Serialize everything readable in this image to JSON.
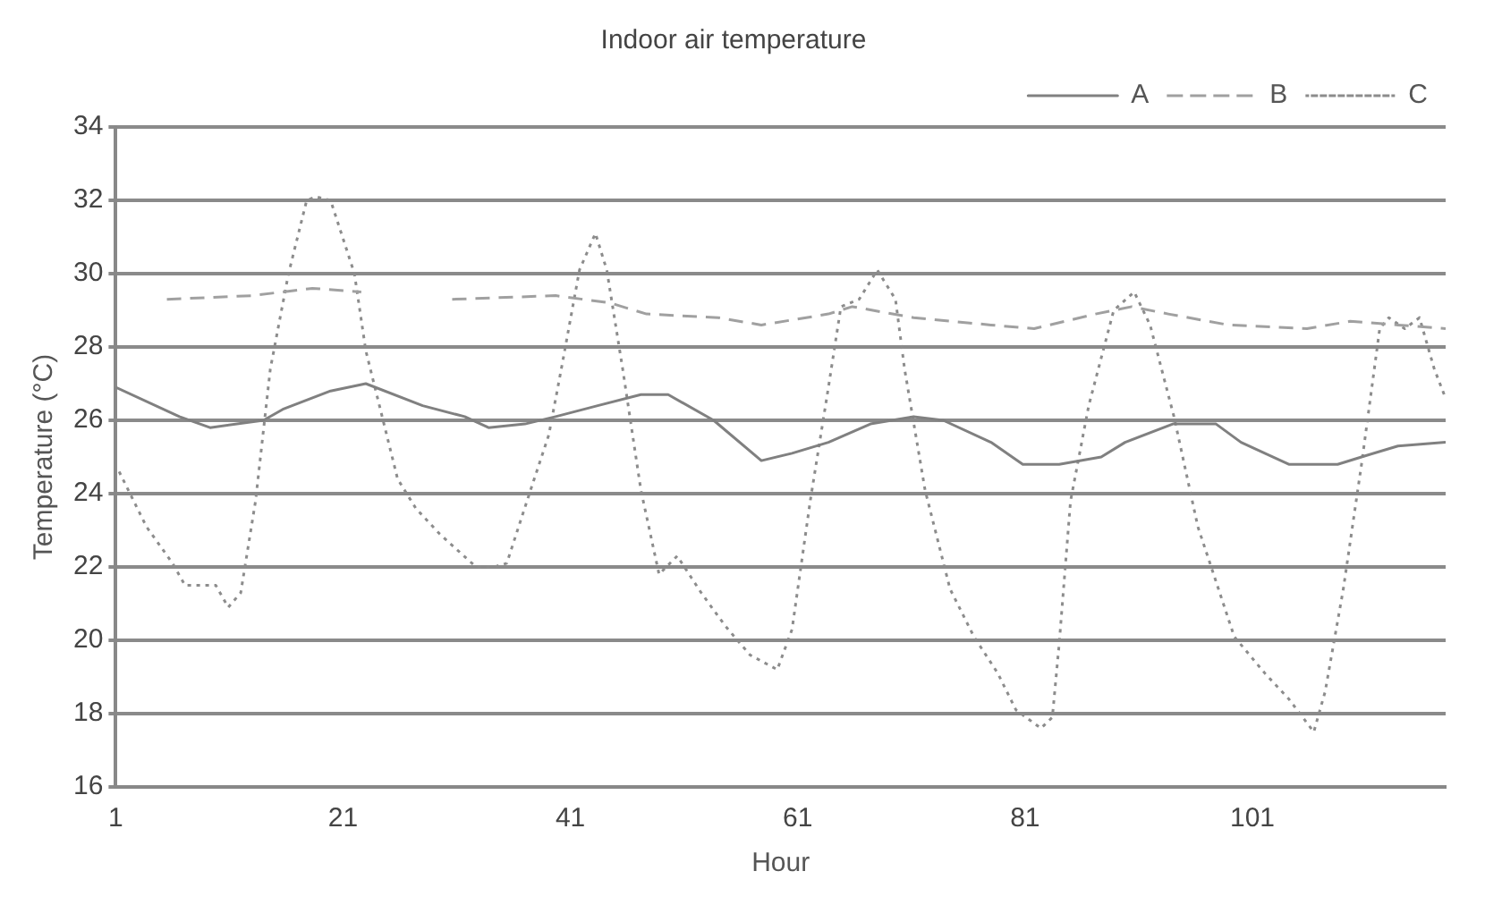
{
  "chart_data": {
    "type": "line",
    "title": "Indoor air temperature",
    "xlabel": "Hour",
    "ylabel": "Temperature (°C)",
    "xlim": [
      1,
      118
    ],
    "xticks": [
      1,
      21,
      41,
      61,
      81,
      101
    ],
    "ylim": [
      16,
      34
    ],
    "yticks": [
      16,
      18,
      20,
      22,
      24,
      26,
      28,
      30,
      32,
      34
    ],
    "grid": "y",
    "legend": "top right",
    "marker": "none",
    "series": [
      {
        "name": "A",
        "color": "#808080",
        "line_style": "solid",
        "x": [
          1,
          6.6,
          9.3,
          14,
          15.7,
          19.9,
          23,
          28,
          31.7,
          33.8,
          37,
          39.7,
          43.4,
          47.2,
          49.6,
          53.6,
          57.8,
          60.5,
          63.7,
          67.4,
          71.2,
          73.8,
          78,
          80.8,
          84,
          87.7,
          89.8,
          94,
          97.8,
          100,
          104.2,
          108.5,
          110.6,
          113.8,
          118
        ],
        "values": [
          26.9,
          26.1,
          25.8,
          26,
          26.3,
          26.8,
          27,
          26.4,
          26.1,
          25.8,
          25.9,
          26.1,
          26.4,
          26.7,
          26.7,
          26,
          24.9,
          25.1,
          25.4,
          25.9,
          26.1,
          26,
          25.4,
          24.8,
          24.8,
          25,
          25.4,
          25.9,
          25.9,
          25.4,
          24.8,
          24.8,
          25,
          25.3,
          25.4
        ]
      },
      {
        "name": "B",
        "color": "#a0a0a0",
        "line_style": "dashed",
        "x": [
          5.5,
          13,
          18.3,
          22.6,
          23.5,
          30.6,
          39.7,
          44.5,
          47.7,
          54,
          57.8,
          63.7,
          65.8,
          71.2,
          78,
          81.8,
          87.2,
          90.4,
          93.6,
          98.9,
          105.8,
          109.6,
          113.8,
          118
        ],
        "values": [
          29.3,
          29.4,
          29.6,
          29.5,
          null,
          29.3,
          29.4,
          29.2,
          28.9,
          28.8,
          28.6,
          28.9,
          29.1,
          28.8,
          28.6,
          28.5,
          28.9,
          29.1,
          28.9,
          28.6,
          28.5,
          28.7,
          28.6,
          28.5
        ]
      },
      {
        "name": "C",
        "color": "#8c8c8c",
        "line_style": "dotted",
        "x": [
          1.3,
          3.7,
          6,
          7.1,
          9.8,
          10.9,
          12,
          13.3,
          14.6,
          16.2,
          17.8,
          18.6,
          19.9,
          22,
          23,
          25.8,
          27.4,
          29.5,
          32.7,
          34.3,
          35.4,
          37.5,
          39.1,
          40.2,
          41.8,
          43.2,
          44.2,
          45.6,
          47.2,
          48.8,
          50.4,
          52.5,
          54.6,
          56.8,
          59.2,
          60.5,
          62.1,
          63.7,
          64.8,
          66.4,
          68,
          69.6,
          70.4,
          72.2,
          74.4,
          76.5,
          78.6,
          80.2,
          82.4,
          83.4,
          84,
          85,
          86.6,
          88.8,
          90.6,
          92,
          94.1,
          96.2,
          97.8,
          99.4,
          102.1,
          104.2,
          106.4,
          107.4,
          109,
          110.6,
          112.2,
          113,
          114.4,
          115.7,
          117,
          118
        ],
        "values": [
          24.6,
          23.1,
          22.1,
          21.5,
          21.5,
          20.9,
          21.3,
          23.8,
          27.4,
          30,
          32,
          32.1,
          32,
          30,
          27.9,
          24.4,
          23.6,
          22.9,
          22,
          22,
          22.1,
          24.1,
          25.6,
          27.4,
          30.1,
          31.1,
          30.1,
          27.4,
          24.1,
          21.8,
          22.3,
          21.3,
          20.4,
          19.6,
          19.2,
          20.3,
          23.8,
          26.9,
          29.1,
          29.3,
          30.1,
          29.3,
          27.4,
          24.1,
          21.4,
          20.1,
          19.1,
          18.1,
          17.6,
          17.9,
          19.9,
          23.8,
          26.4,
          29,
          29.5,
          28.6,
          26.1,
          23.1,
          21.6,
          20.1,
          19.1,
          18.4,
          17.5,
          18.6,
          21.4,
          24.8,
          28.5,
          28.8,
          28.5,
          28.8,
          27.4,
          26.6
        ]
      }
    ]
  }
}
